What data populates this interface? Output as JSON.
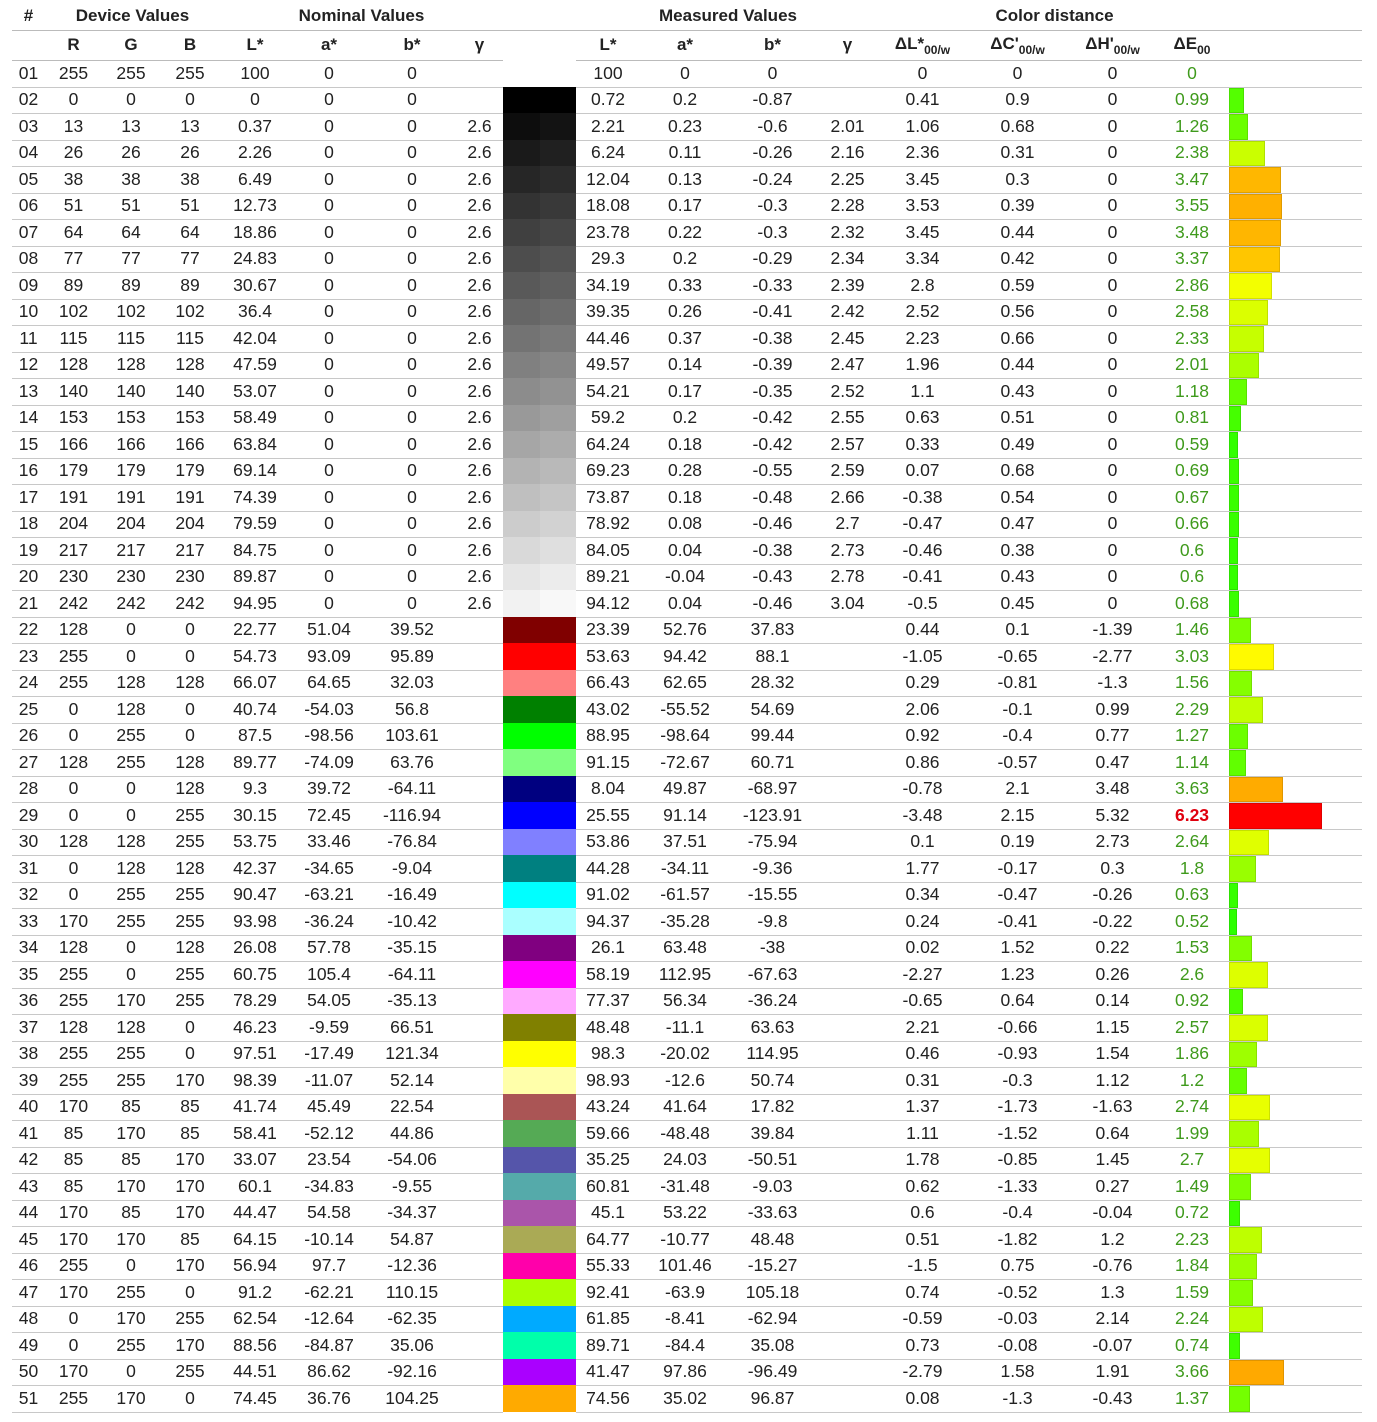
{
  "groups": {
    "num": "#",
    "device": "Device Values",
    "nominal": "Nominal Values",
    "measured": "Measured Values",
    "distance": "Color distance"
  },
  "columns": {
    "R": "R",
    "G": "G",
    "B": "B",
    "nL": "L*",
    "na": "a*",
    "nb": "b*",
    "ngamma": "γ",
    "mL": "L*",
    "ma": "a*",
    "mb": "b*",
    "mgamma": "γ",
    "dL": {
      "main": "ΔL*",
      "sub": "00/w"
    },
    "dC": {
      "main": "ΔC'",
      "sub": "00/w"
    },
    "dH": {
      "main": "ΔH'",
      "sub": "00/w"
    },
    "dE": {
      "main": "ΔE",
      "sub": "00"
    }
  },
  "colors": {
    "de_text": "#3f9a1c",
    "de_text_bad": "#e0000e",
    "grid": "#c8c8c8"
  },
  "rows": [
    [
      "01",
      "255",
      "255",
      "255",
      "100",
      "0",
      "0",
      "",
      "100",
      "0",
      "0",
      "",
      "0",
      "0",
      "0",
      "0"
    ],
    [
      "02",
      "0",
      "0",
      "0",
      "0",
      "0",
      "0",
      "",
      "0.72",
      "0.2",
      "-0.87",
      "",
      "0.41",
      "0.9",
      "0",
      "0.99"
    ],
    [
      "03",
      "13",
      "13",
      "13",
      "0.37",
      "0",
      "0",
      "2.6",
      "2.21",
      "0.23",
      "-0.6",
      "2.01",
      "1.06",
      "0.68",
      "0",
      "1.26"
    ],
    [
      "04",
      "26",
      "26",
      "26",
      "2.26",
      "0",
      "0",
      "2.6",
      "6.24",
      "0.11",
      "-0.26",
      "2.16",
      "2.36",
      "0.31",
      "0",
      "2.38"
    ],
    [
      "05",
      "38",
      "38",
      "38",
      "6.49",
      "0",
      "0",
      "2.6",
      "12.04",
      "0.13",
      "-0.24",
      "2.25",
      "3.45",
      "0.3",
      "0",
      "3.47"
    ],
    [
      "06",
      "51",
      "51",
      "51",
      "12.73",
      "0",
      "0",
      "2.6",
      "18.08",
      "0.17",
      "-0.3",
      "2.28",
      "3.53",
      "0.39",
      "0",
      "3.55"
    ],
    [
      "07",
      "64",
      "64",
      "64",
      "18.86",
      "0",
      "0",
      "2.6",
      "23.78",
      "0.22",
      "-0.3",
      "2.32",
      "3.45",
      "0.44",
      "0",
      "3.48"
    ],
    [
      "08",
      "77",
      "77",
      "77",
      "24.83",
      "0",
      "0",
      "2.6",
      "29.3",
      "0.2",
      "-0.29",
      "2.34",
      "3.34",
      "0.42",
      "0",
      "3.37"
    ],
    [
      "09",
      "89",
      "89",
      "89",
      "30.67",
      "0",
      "0",
      "2.6",
      "34.19",
      "0.33",
      "-0.33",
      "2.39",
      "2.8",
      "0.59",
      "0",
      "2.86"
    ],
    [
      "10",
      "102",
      "102",
      "102",
      "36.4",
      "0",
      "0",
      "2.6",
      "39.35",
      "0.26",
      "-0.41",
      "2.42",
      "2.52",
      "0.56",
      "0",
      "2.58"
    ],
    [
      "11",
      "115",
      "115",
      "115",
      "42.04",
      "0",
      "0",
      "2.6",
      "44.46",
      "0.37",
      "-0.38",
      "2.45",
      "2.23",
      "0.66",
      "0",
      "2.33"
    ],
    [
      "12",
      "128",
      "128",
      "128",
      "47.59",
      "0",
      "0",
      "2.6",
      "49.57",
      "0.14",
      "-0.39",
      "2.47",
      "1.96",
      "0.44",
      "0",
      "2.01"
    ],
    [
      "13",
      "140",
      "140",
      "140",
      "53.07",
      "0",
      "0",
      "2.6",
      "54.21",
      "0.17",
      "-0.35",
      "2.52",
      "1.1",
      "0.43",
      "0",
      "1.18"
    ],
    [
      "14",
      "153",
      "153",
      "153",
      "58.49",
      "0",
      "0",
      "2.6",
      "59.2",
      "0.2",
      "-0.42",
      "2.55",
      "0.63",
      "0.51",
      "0",
      "0.81"
    ],
    [
      "15",
      "166",
      "166",
      "166",
      "63.84",
      "0",
      "0",
      "2.6",
      "64.24",
      "0.18",
      "-0.42",
      "2.57",
      "0.33",
      "0.49",
      "0",
      "0.59"
    ],
    [
      "16",
      "179",
      "179",
      "179",
      "69.14",
      "0",
      "0",
      "2.6",
      "69.23",
      "0.28",
      "-0.55",
      "2.59",
      "0.07",
      "0.68",
      "0",
      "0.69"
    ],
    [
      "17",
      "191",
      "191",
      "191",
      "74.39",
      "0",
      "0",
      "2.6",
      "73.87",
      "0.18",
      "-0.48",
      "2.66",
      "-0.38",
      "0.54",
      "0",
      "0.67"
    ],
    [
      "18",
      "204",
      "204",
      "204",
      "79.59",
      "0",
      "0",
      "2.6",
      "78.92",
      "0.08",
      "-0.46",
      "2.7",
      "-0.47",
      "0.47",
      "0",
      "0.66"
    ],
    [
      "19",
      "217",
      "217",
      "217",
      "84.75",
      "0",
      "0",
      "2.6",
      "84.05",
      "0.04",
      "-0.38",
      "2.73",
      "-0.46",
      "0.38",
      "0",
      "0.6"
    ],
    [
      "20",
      "230",
      "230",
      "230",
      "89.87",
      "0",
      "0",
      "2.6",
      "89.21",
      "-0.04",
      "-0.43",
      "2.78",
      "-0.41",
      "0.43",
      "0",
      "0.6"
    ],
    [
      "21",
      "242",
      "242",
      "242",
      "94.95",
      "0",
      "0",
      "2.6",
      "94.12",
      "0.04",
      "-0.46",
      "3.04",
      "-0.5",
      "0.45",
      "0",
      "0.68"
    ],
    [
      "22",
      "128",
      "0",
      "0",
      "22.77",
      "51.04",
      "39.52",
      "",
      "23.39",
      "52.76",
      "37.83",
      "",
      "0.44",
      "0.1",
      "-1.39",
      "1.46"
    ],
    [
      "23",
      "255",
      "0",
      "0",
      "54.73",
      "93.09",
      "95.89",
      "",
      "53.63",
      "94.42",
      "88.1",
      "",
      "-1.05",
      "-0.65",
      "-2.77",
      "3.03"
    ],
    [
      "24",
      "255",
      "128",
      "128",
      "66.07",
      "64.65",
      "32.03",
      "",
      "66.43",
      "62.65",
      "28.32",
      "",
      "0.29",
      "-0.81",
      "-1.3",
      "1.56"
    ],
    [
      "25",
      "0",
      "128",
      "0",
      "40.74",
      "-54.03",
      "56.8",
      "",
      "43.02",
      "-55.52",
      "54.69",
      "",
      "2.06",
      "-0.1",
      "0.99",
      "2.29"
    ],
    [
      "26",
      "0",
      "255",
      "0",
      "87.5",
      "-98.56",
      "103.61",
      "",
      "88.95",
      "-98.64",
      "99.44",
      "",
      "0.92",
      "-0.4",
      "0.77",
      "1.27"
    ],
    [
      "27",
      "128",
      "255",
      "128",
      "89.77",
      "-74.09",
      "63.76",
      "",
      "91.15",
      "-72.67",
      "60.71",
      "",
      "0.86",
      "-0.57",
      "0.47",
      "1.14"
    ],
    [
      "28",
      "0",
      "0",
      "128",
      "9.3",
      "39.72",
      "-64.11",
      "",
      "8.04",
      "49.87",
      "-68.97",
      "",
      "-0.78",
      "2.1",
      "3.48",
      "3.63"
    ],
    [
      "29",
      "0",
      "0",
      "255",
      "30.15",
      "72.45",
      "-116.94",
      "",
      "25.55",
      "91.14",
      "-123.91",
      "",
      "-3.48",
      "2.15",
      "5.32",
      "6.23"
    ],
    [
      "30",
      "128",
      "128",
      "255",
      "53.75",
      "33.46",
      "-76.84",
      "",
      "53.86",
      "37.51",
      "-75.94",
      "",
      "0.1",
      "0.19",
      "2.73",
      "2.64"
    ],
    [
      "31",
      "0",
      "128",
      "128",
      "42.37",
      "-34.65",
      "-9.04",
      "",
      "44.28",
      "-34.11",
      "-9.36",
      "",
      "1.77",
      "-0.17",
      "0.3",
      "1.8"
    ],
    [
      "32",
      "0",
      "255",
      "255",
      "90.47",
      "-63.21",
      "-16.49",
      "",
      "91.02",
      "-61.57",
      "-15.55",
      "",
      "0.34",
      "-0.47",
      "-0.26",
      "0.63"
    ],
    [
      "33",
      "170",
      "255",
      "255",
      "93.98",
      "-36.24",
      "-10.42",
      "",
      "94.37",
      "-35.28",
      "-9.8",
      "",
      "0.24",
      "-0.41",
      "-0.22",
      "0.52"
    ],
    [
      "34",
      "128",
      "0",
      "128",
      "26.08",
      "57.78",
      "-35.15",
      "",
      "26.1",
      "63.48",
      "-38",
      "",
      "0.02",
      "1.52",
      "0.22",
      "1.53"
    ],
    [
      "35",
      "255",
      "0",
      "255",
      "60.75",
      "105.4",
      "-64.11",
      "",
      "58.19",
      "112.95",
      "-67.63",
      "",
      "-2.27",
      "1.23",
      "0.26",
      "2.6"
    ],
    [
      "36",
      "255",
      "170",
      "255",
      "78.29",
      "54.05",
      "-35.13",
      "",
      "77.37",
      "56.34",
      "-36.24",
      "",
      "-0.65",
      "0.64",
      "0.14",
      "0.92"
    ],
    [
      "37",
      "128",
      "128",
      "0",
      "46.23",
      "-9.59",
      "66.51",
      "",
      "48.48",
      "-11.1",
      "63.63",
      "",
      "2.21",
      "-0.66",
      "1.15",
      "2.57"
    ],
    [
      "38",
      "255",
      "255",
      "0",
      "97.51",
      "-17.49",
      "121.34",
      "",
      "98.3",
      "-20.02",
      "114.95",
      "",
      "0.46",
      "-0.93",
      "1.54",
      "1.86"
    ],
    [
      "39",
      "255",
      "255",
      "170",
      "98.39",
      "-11.07",
      "52.14",
      "",
      "98.93",
      "-12.6",
      "50.74",
      "",
      "0.31",
      "-0.3",
      "1.12",
      "1.2"
    ],
    [
      "40",
      "170",
      "85",
      "85",
      "41.74",
      "45.49",
      "22.54",
      "",
      "43.24",
      "41.64",
      "17.82",
      "",
      "1.37",
      "-1.73",
      "-1.63",
      "2.74"
    ],
    [
      "41",
      "85",
      "170",
      "85",
      "58.41",
      "-52.12",
      "44.86",
      "",
      "59.66",
      "-48.48",
      "39.84",
      "",
      "1.11",
      "-1.52",
      "0.64",
      "1.99"
    ],
    [
      "42",
      "85",
      "85",
      "170",
      "33.07",
      "23.54",
      "-54.06",
      "",
      "35.25",
      "24.03",
      "-50.51",
      "",
      "1.78",
      "-0.85",
      "1.45",
      "2.7"
    ],
    [
      "43",
      "85",
      "170",
      "170",
      "60.1",
      "-34.83",
      "-9.55",
      "",
      "60.81",
      "-31.48",
      "-9.03",
      "",
      "0.62",
      "-1.33",
      "0.27",
      "1.49"
    ],
    [
      "44",
      "170",
      "85",
      "170",
      "44.47",
      "54.58",
      "-34.37",
      "",
      "45.1",
      "53.22",
      "-33.63",
      "",
      "0.6",
      "-0.4",
      "-0.04",
      "0.72"
    ],
    [
      "45",
      "170",
      "170",
      "85",
      "64.15",
      "-10.14",
      "54.87",
      "",
      "64.77",
      "-10.77",
      "48.48",
      "",
      "0.51",
      "-1.82",
      "1.2",
      "2.23"
    ],
    [
      "46",
      "255",
      "0",
      "170",
      "56.94",
      "97.7",
      "-12.36",
      "",
      "55.33",
      "101.46",
      "-15.27",
      "",
      "-1.5",
      "0.75",
      "-0.76",
      "1.84"
    ],
    [
      "47",
      "170",
      "255",
      "0",
      "91.2",
      "-62.21",
      "110.15",
      "",
      "92.41",
      "-63.9",
      "105.18",
      "",
      "0.74",
      "-0.52",
      "1.3",
      "1.59"
    ],
    [
      "48",
      "0",
      "170",
      "255",
      "62.54",
      "-12.64",
      "-62.35",
      "",
      "61.85",
      "-8.41",
      "-62.94",
      "",
      "-0.59",
      "-0.03",
      "2.14",
      "2.24"
    ],
    [
      "49",
      "0",
      "255",
      "170",
      "88.56",
      "-84.87",
      "35.06",
      "",
      "89.71",
      "-84.4",
      "35.08",
      "",
      "0.73",
      "-0.08",
      "-0.07",
      "0.74"
    ],
    [
      "50",
      "170",
      "0",
      "255",
      "44.51",
      "86.62",
      "-92.16",
      "",
      "41.47",
      "97.86",
      "-96.49",
      "",
      "-2.79",
      "1.58",
      "1.91",
      "3.66"
    ],
    [
      "51",
      "255",
      "170",
      "0",
      "74.45",
      "36.76",
      "104.25",
      "",
      "74.56",
      "35.02",
      "96.87",
      "",
      "0.08",
      "-1.3",
      "-0.43",
      "1.37"
    ]
  ]
}
